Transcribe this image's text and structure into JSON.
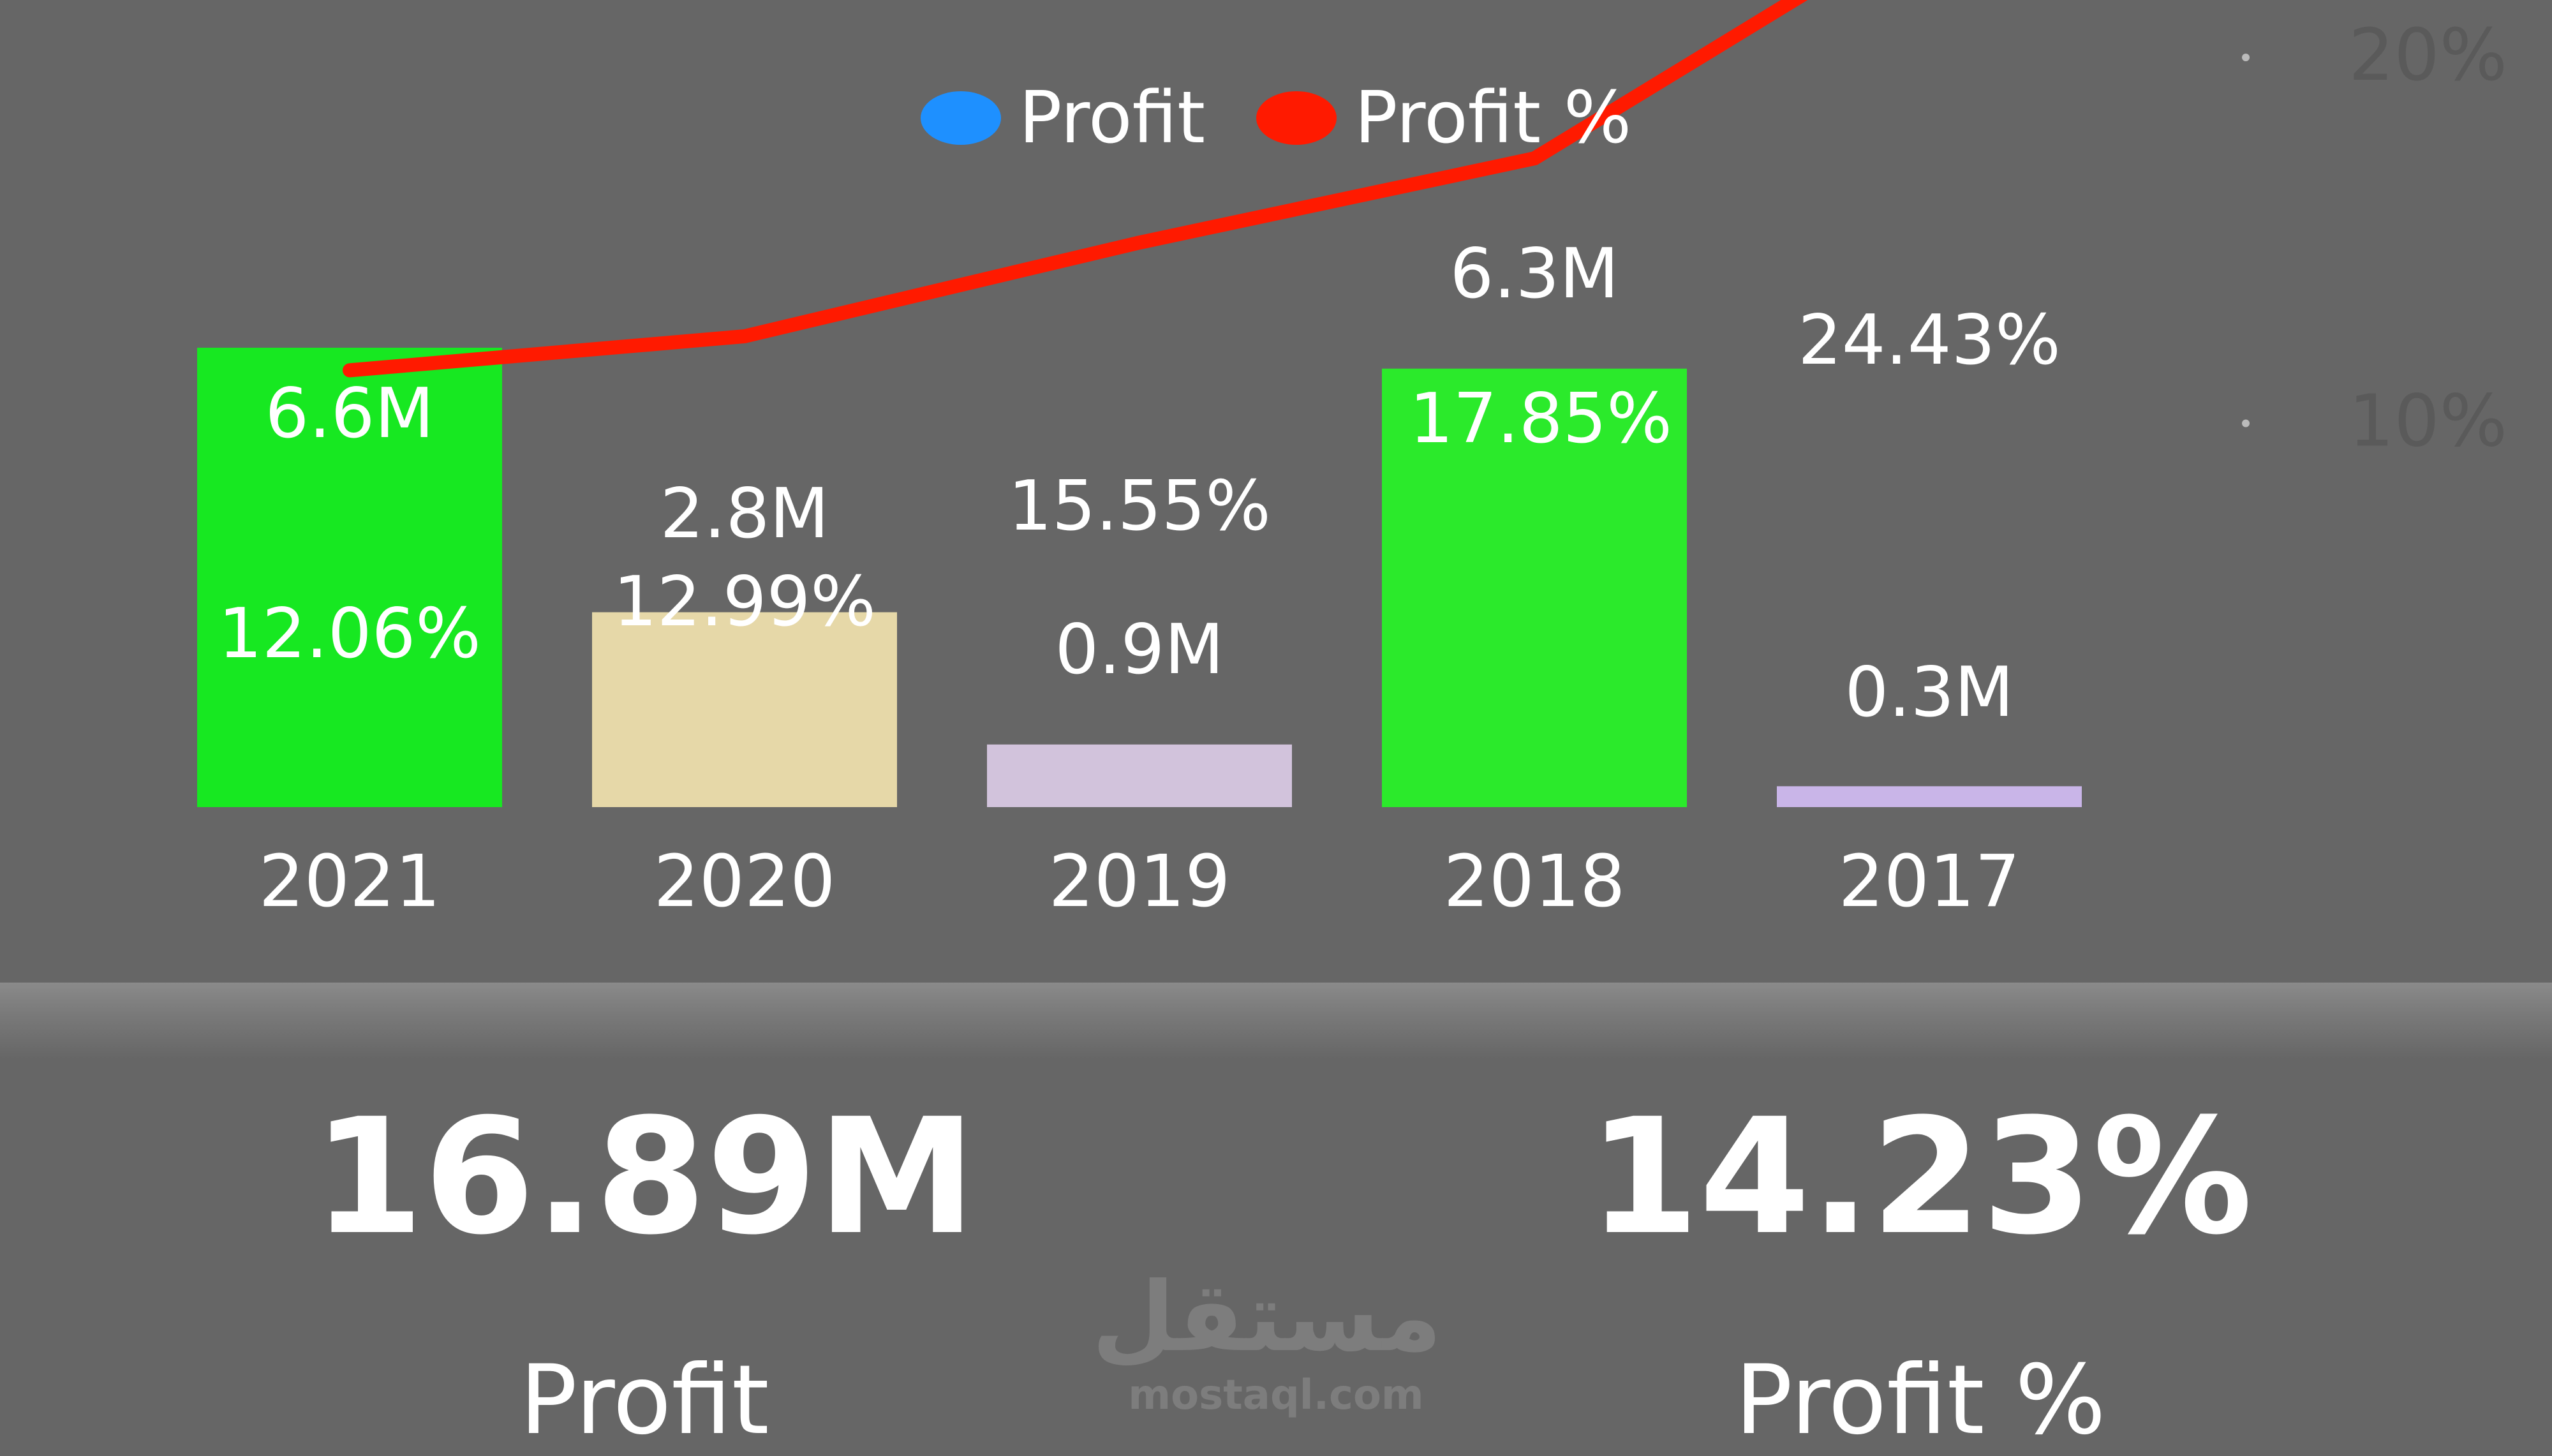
{
  "legend": [
    {
      "label": "Profit",
      "color": "#1e90ff"
    },
    {
      "label": "Profit %",
      "color": "#ff1a00"
    }
  ],
  "chart_data": {
    "type": "bar",
    "categories": [
      "2021",
      "2020",
      "2019",
      "2018",
      "2017"
    ],
    "series": [
      {
        "name": "Profit",
        "values": [
          6.6,
          2.8,
          0.9,
          6.3,
          0.3
        ],
        "labels": [
          "6.6M",
          "2.8M",
          "0.9M",
          "6.3M",
          "0.3M"
        ],
        "colors": [
          "#17e821",
          "#e6d8a8",
          "#d2c3dc",
          "#2bea2b",
          "#c9b5e8"
        ],
        "ylim": [
          0,
          6.6
        ]
      },
      {
        "name": "Profit %",
        "type": "line",
        "color": "#ff1a00",
        "values": [
          12.06,
          12.99,
          15.55,
          17.85,
          24.43
        ],
        "labels": [
          "12.06%",
          "12.99%",
          "15.55%",
          "17.85%",
          "24.43%"
        ]
      }
    ],
    "y2_ticks": [
      "20%",
      "10%"
    ],
    "y2_tick_values": [
      20,
      10
    ],
    "legend_position": "top-center",
    "grid": false
  },
  "kpis": {
    "profit_value": "16.89M",
    "profit_label": "Profit",
    "profit_pct_value": "14.23%",
    "profit_pct_label": "Profit %"
  },
  "watermark": {
    "logo_text": "مستقل",
    "url": "mostaql.com"
  }
}
